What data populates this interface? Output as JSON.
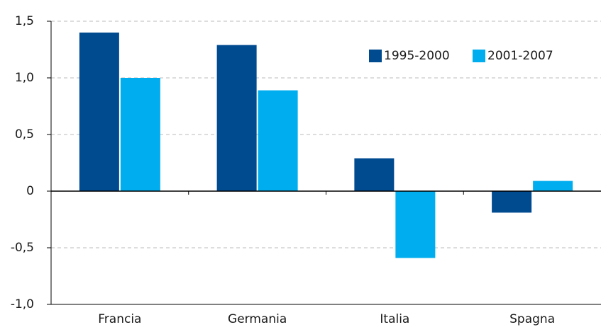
{
  "chart_data": {
    "type": "bar",
    "categories": [
      "Francia",
      "Germania",
      "Italia",
      "Spagna"
    ],
    "series": [
      {
        "name": "1995-2000",
        "color": "#004a8f",
        "values": [
          1.4,
          1.29,
          0.29,
          -0.19
        ]
      },
      {
        "name": "2001-2007",
        "color": "#00aeef",
        "values": [
          1.0,
          0.89,
          -0.59,
          0.09
        ]
      }
    ],
    "ylim": [
      -1.0,
      1.5
    ],
    "yticks": [
      {
        "value": -1.0,
        "label": "-1,0"
      },
      {
        "value": -0.5,
        "label": "-0,5"
      },
      0,
      {
        "value": 0.5,
        "label": "0,5"
      },
      {
        "value": 1.0,
        "label": "1,0"
      },
      {
        "value": 1.5,
        "label": "1,5"
      }
    ],
    "grid": true,
    "legend": "upper right"
  }
}
